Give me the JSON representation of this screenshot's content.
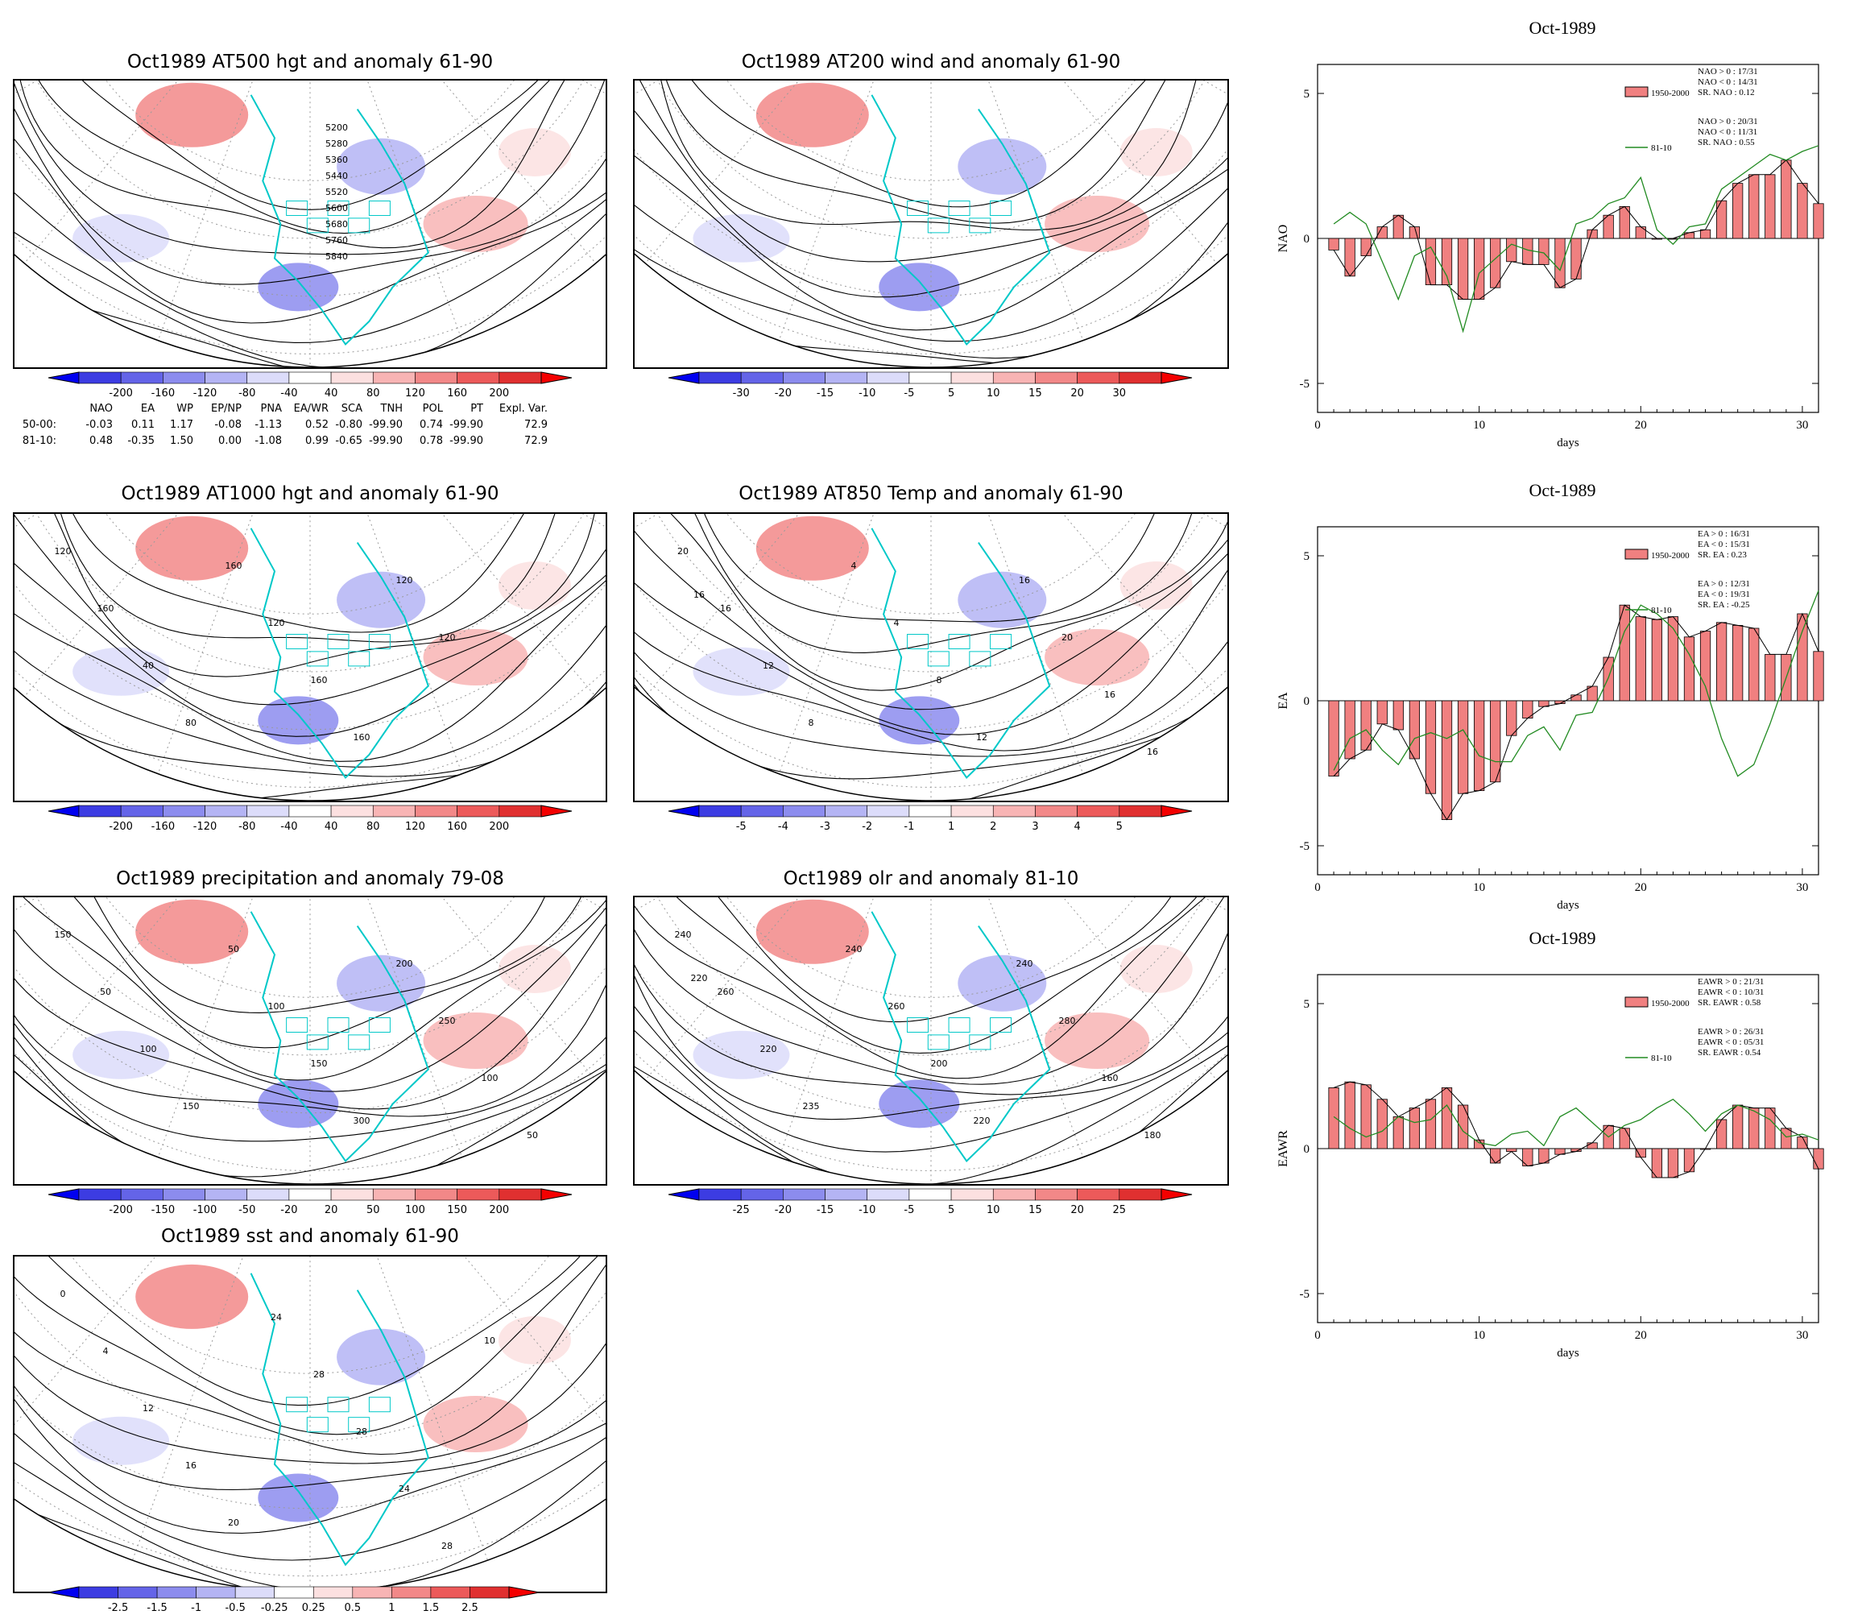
{
  "colors": {
    "coastline": "#00c8c8",
    "contour": "#000000",
    "grid": "#9a9a9a",
    "anom_pos": [
      "#fce0e0",
      "#f8b4b4",
      "#f28888",
      "#ec5a5a",
      "#e03030",
      "#f40000"
    ],
    "anom_neg": [
      "#dcdcfa",
      "#b4b4f4",
      "#8c8cee",
      "#6464e8",
      "#3c3ce2",
      "#0000f0"
    ],
    "bar_fill": "#f08080",
    "line_8110": "#228b22"
  },
  "maps": [
    {
      "title": "Oct1989 AT500 hgt and anomaly 61-90",
      "colorbar": [
        "-200",
        "-160",
        "-120",
        "-80",
        "-40",
        "40",
        "80",
        "120",
        "160",
        "200"
      ]
    },
    {
      "title": "Oct1989 AT200 wind and anomaly 61-90",
      "colorbar": [
        "-30",
        "-20",
        "-15",
        "-10",
        "-5",
        "5",
        "10",
        "15",
        "20",
        "30"
      ]
    },
    {
      "title": "Oct1989 AT1000 hgt and anomaly 61-90",
      "colorbar": [
        "-200",
        "-160",
        "-120",
        "-80",
        "-40",
        "40",
        "80",
        "120",
        "160",
        "200"
      ]
    },
    {
      "title": "Oct1989 AT850 Temp and anomaly 61-90",
      "colorbar": [
        "-5",
        "-4",
        "-3",
        "-2",
        "-1",
        "1",
        "2",
        "3",
        "4",
        "5"
      ]
    },
    {
      "title": "Oct1989 precipitation and anomaly 79-08",
      "colorbar": [
        "-200",
        "-150",
        "-100",
        "-50",
        "-20",
        "20",
        "50",
        "100",
        "150",
        "200"
      ]
    },
    {
      "title": "Oct1989 olr and anomaly 81-10",
      "colorbar": [
        "-25",
        "-20",
        "-15",
        "-10",
        "-5",
        "5",
        "10",
        "15",
        "20",
        "25"
      ]
    },
    {
      "title": "Oct1989 sst and anomaly 61-90",
      "colorbar": [
        "-2.5",
        "-1.5",
        "-1",
        "-0.5",
        "-0.25",
        "0.25",
        "0.5",
        "1",
        "1.5",
        "2.5"
      ]
    }
  ],
  "contour_labels": {
    "at500": [
      "5200",
      "5280",
      "5360",
      "5440",
      "5520",
      "5600",
      "5680",
      "5760",
      "5840"
    ],
    "at1000": [
      "120",
      "160",
      "40",
      "80",
      "160",
      "120",
      "160",
      "160",
      "120",
      "120"
    ],
    "at850": [
      "20",
      "16",
      "12",
      "8",
      "4",
      "4",
      "8",
      "12",
      "16",
      "20",
      "16",
      "16",
      "16"
    ],
    "precip": [
      "150",
      "50",
      "100",
      "150",
      "50",
      "100",
      "150",
      "300",
      "200",
      "250",
      "100",
      "50"
    ],
    "olr": [
      "240",
      "260",
      "220",
      "235",
      "240",
      "260",
      "200",
      "220",
      "240",
      "280",
      "160",
      "180",
      "220"
    ],
    "sst": [
      "0",
      "4",
      "12",
      "16",
      "20",
      "24",
      "28",
      "28",
      "24",
      "28",
      "10"
    ]
  },
  "index_table": {
    "headers": [
      "NAO",
      "EA",
      "WP",
      "EP/NP",
      "PNA",
      "EA/WR",
      "SCA",
      "TNH",
      "POL",
      "PT",
      "Expl. Var."
    ],
    "rows": [
      {
        "label": "50-00:",
        "values": [
          "-0.03",
          "0.11",
          "1.17",
          "-0.08",
          "-1.13",
          "0.52",
          "-0.80",
          "-99.90",
          "0.74",
          "-99.90",
          "72.9"
        ]
      },
      {
        "label": "81-10:",
        "values": [
          "0.48",
          "-0.35",
          "1.50",
          "0.00",
          "-1.08",
          "0.99",
          "-0.65",
          "-99.90",
          "0.78",
          "-99.90",
          "72.9"
        ]
      }
    ]
  },
  "chart_data": [
    {
      "type": "bar",
      "title": "Oct-1989",
      "xlabel": "days",
      "ylabel": "NAO",
      "xlim": [
        0,
        31
      ],
      "ylim": [
        -6,
        6
      ],
      "xticks": [
        "0",
        "10",
        "20",
        "30"
      ],
      "yticks": [
        "5",
        "0",
        "-5"
      ],
      "x": [
        1,
        2,
        3,
        4,
        5,
        6,
        7,
        8,
        9,
        10,
        11,
        12,
        13,
        14,
        15,
        16,
        17,
        18,
        19,
        20,
        21,
        22,
        23,
        24,
        25,
        26,
        27,
        28,
        29,
        30,
        31
      ],
      "series": [
        {
          "name": "1950-2000",
          "kind": "bar",
          "values": [
            -0.4,
            -1.3,
            -0.6,
            0.4,
            0.8,
            0.4,
            -1.6,
            -1.6,
            -2.1,
            -2.1,
            -1.7,
            -0.8,
            -0.9,
            -0.9,
            -1.7,
            -1.4,
            0.3,
            0.8,
            1.1,
            0.4,
            0,
            0,
            0.2,
            0.3,
            1.3,
            1.9,
            2.2,
            2.2,
            2.7,
            1.9,
            1.2
          ]
        },
        {
          "name": "81-10",
          "kind": "line",
          "values": [
            0.5,
            0.9,
            0.5,
            -0.8,
            -2.1,
            -0.6,
            -0.3,
            -1.3,
            -3.2,
            -1.2,
            -0.7,
            -0.2,
            -0.4,
            -0.5,
            -1.1,
            0.5,
            0.7,
            1.2,
            1.4,
            2.1,
            0.3,
            -0.2,
            0.4,
            0.5,
            1.7,
            2.1,
            2.5,
            2.9,
            2.7,
            3.0,
            3.2
          ]
        }
      ],
      "legend_stats": [
        [
          "NAO > 0 : 17/31",
          "NAO < 0 : 14/31",
          "SR. NAO : 0.12"
        ],
        [
          "NAO > 0 : 20/31",
          "NAO < 0 : 11/31",
          "SR. NAO : 0.55"
        ]
      ]
    },
    {
      "type": "bar",
      "title": "Oct-1989",
      "xlabel": "days",
      "ylabel": "EA",
      "xlim": [
        0,
        31
      ],
      "ylim": [
        -6,
        6
      ],
      "xticks": [
        "0",
        "10",
        "20",
        "30"
      ],
      "yticks": [
        "5",
        "0",
        "-5"
      ],
      "x": [
        1,
        2,
        3,
        4,
        5,
        6,
        7,
        8,
        9,
        10,
        11,
        12,
        13,
        14,
        15,
        16,
        17,
        18,
        19,
        20,
        21,
        22,
        23,
        24,
        25,
        26,
        27,
        28,
        29,
        30,
        31
      ],
      "series": [
        {
          "name": "1950-2000",
          "kind": "bar",
          "values": [
            -2.6,
            -2.0,
            -1.7,
            -0.8,
            -1.0,
            -2.0,
            -3.2,
            -4.1,
            -3.2,
            -3.1,
            -2.8,
            -1.2,
            -0.6,
            -0.2,
            -0.1,
            0.2,
            0.5,
            1.5,
            3.3,
            2.9,
            2.8,
            2.9,
            2.2,
            2.4,
            2.7,
            2.6,
            2.5,
            1.6,
            1.6,
            3.0,
            1.7
          ]
        },
        {
          "name": "81-10",
          "kind": "line",
          "values": [
            -2.4,
            -1.3,
            -1.0,
            -1.7,
            -2.2,
            -1.3,
            -1.1,
            -1.3,
            -1.0,
            -1.9,
            -2.1,
            -2.1,
            -1.2,
            -0.9,
            -1.7,
            -0.5,
            -0.4,
            0.8,
            2.4,
            3.3,
            3.0,
            2.5,
            1.6,
            0.5,
            -1.3,
            -2.6,
            -2.2,
            -0.8,
            0.8,
            2.4,
            3.8
          ]
        }
      ],
      "legend_stats": [
        [
          "EA > 0 : 16/31",
          "EA < 0 : 15/31",
          "SR. EA : 0.23"
        ],
        [
          "EA > 0 : 12/31",
          "EA < 0 : 19/31",
          "SR. EA : -0.25"
        ]
      ]
    },
    {
      "type": "bar",
      "title": "Oct-1989",
      "xlabel": "days",
      "ylabel": "EAWR",
      "xlim": [
        0,
        31
      ],
      "ylim": [
        -6,
        6
      ],
      "xticks": [
        "0",
        "10",
        "20",
        "30"
      ],
      "yticks": [
        "5",
        "0",
        "-5"
      ],
      "x": [
        1,
        2,
        3,
        4,
        5,
        6,
        7,
        8,
        9,
        10,
        11,
        12,
        13,
        14,
        15,
        16,
        17,
        18,
        19,
        20,
        21,
        22,
        23,
        24,
        25,
        26,
        27,
        28,
        29,
        30,
        31
      ],
      "series": [
        {
          "name": "1950-2000",
          "kind": "bar",
          "values": [
            2.1,
            2.3,
            2.2,
            1.7,
            1.1,
            1.4,
            1.7,
            2.1,
            1.5,
            0.3,
            -0.5,
            -0.1,
            -0.6,
            -0.5,
            -0.2,
            -0.1,
            0.2,
            0.8,
            0.7,
            -0.3,
            -1.0,
            -1.0,
            -0.8,
            0,
            1.0,
            1.5,
            1.4,
            1.4,
            0.7,
            0.4,
            -0.7
          ]
        },
        {
          "name": "81-10",
          "kind": "line",
          "values": [
            1.1,
            0.7,
            0.4,
            0.6,
            1.1,
            0.9,
            1.0,
            1.5,
            0.6,
            0.2,
            0.1,
            0.5,
            0.6,
            0.1,
            1.1,
            1.4,
            0.9,
            0.4,
            0.8,
            1.0,
            1.4,
            1.7,
            1.2,
            0.6,
            1.2,
            1.5,
            1.3,
            1.0,
            0.4,
            0.5,
            0.3
          ]
        }
      ],
      "legend_stats": [
        [
          "EAWR > 0 : 21/31",
          "EAWR < 0 : 10/31",
          "SR. EAWR : 0.58"
        ],
        [
          "EAWR > 0 : 26/31",
          "EAWR < 0 : 05/31",
          "SR. EAWR : 0.54"
        ]
      ]
    }
  ]
}
